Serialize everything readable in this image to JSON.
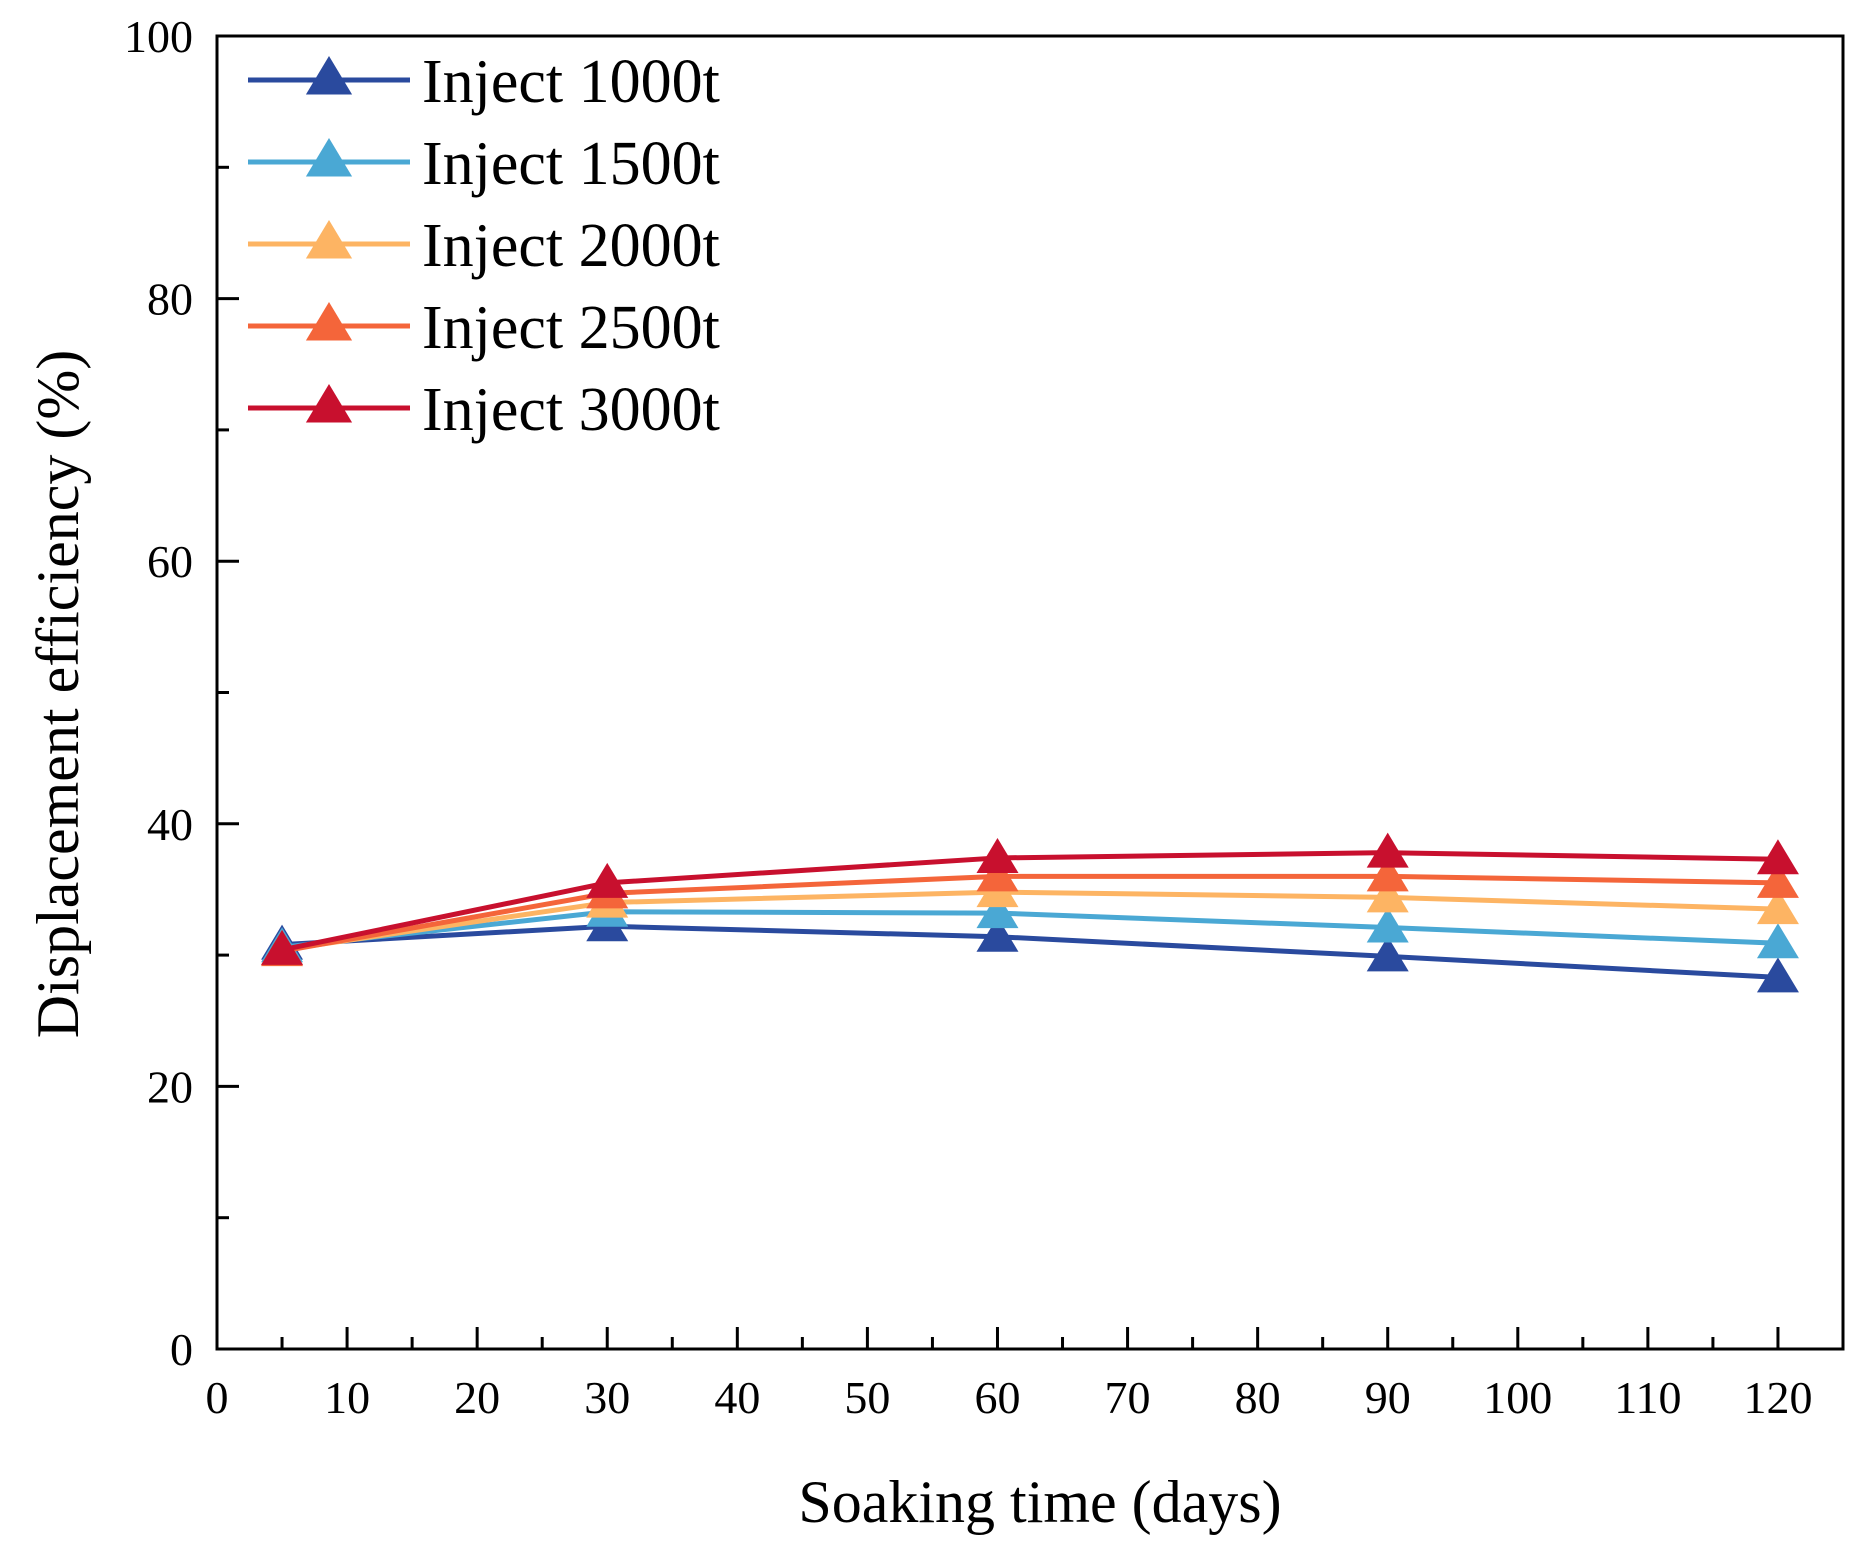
{
  "chart_data": {
    "type": "line",
    "title": "",
    "xlabel": "Soaking time (days)",
    "ylabel": "Displacement efficiency (%)",
    "xlim": [
      0,
      125
    ],
    "ylim": [
      0,
      100
    ],
    "x_ticks": [
      0,
      10,
      20,
      30,
      40,
      50,
      60,
      70,
      80,
      90,
      100,
      110,
      120
    ],
    "x_minor_ticks": [
      5,
      15,
      25,
      35,
      45,
      55,
      65,
      75,
      85,
      95,
      105,
      115
    ],
    "y_ticks": [
      0,
      20,
      40,
      60,
      80,
      100
    ],
    "y_minor_ticks": [
      10,
      30,
      50,
      70,
      90
    ],
    "grid": false,
    "legend_position": "top-left",
    "marker": "triangle",
    "x": [
      5,
      30,
      60,
      90,
      120
    ],
    "series": [
      {
        "name": "Inject 1000t",
        "color": "#2a4a9e",
        "values": [
          30.8,
          32.2,
          31.4,
          29.9,
          28.3
        ]
      },
      {
        "name": "Inject 1500t",
        "color": "#4aa8d4",
        "values": [
          30.6,
          33.3,
          33.2,
          32.1,
          30.9
        ]
      },
      {
        "name": "Inject 2000t",
        "color": "#fdb463",
        "values": [
          30.4,
          34.0,
          34.8,
          34.4,
          33.5
        ]
      },
      {
        "name": "Inject 2500t",
        "color": "#f4653a",
        "values": [
          30.3,
          34.7,
          36.0,
          36.0,
          35.5
        ]
      },
      {
        "name": "Inject 3000t",
        "color": "#c8102e",
        "values": [
          30.4,
          35.5,
          37.4,
          37.8,
          37.3
        ]
      }
    ]
  }
}
